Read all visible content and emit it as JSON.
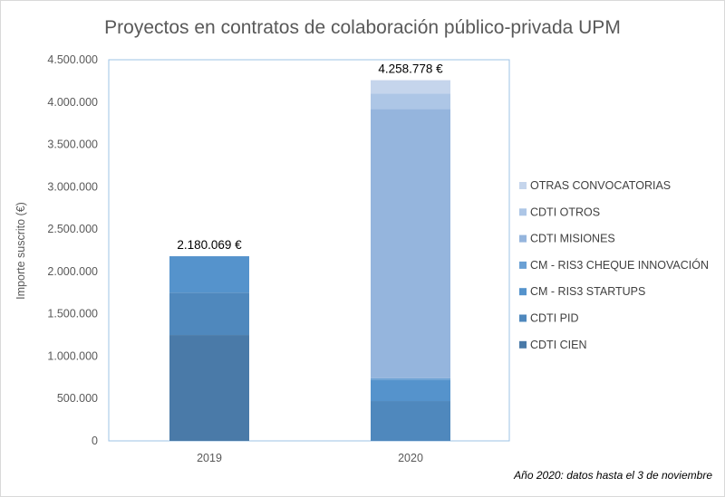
{
  "chart_data": {
    "type": "bar",
    "stacked": true,
    "title": "Proyectos en contratos de colaboración público-privada UPM",
    "ylabel": "Importe suscrito (€)",
    "xlabel": "",
    "ylim": [
      0,
      4500000
    ],
    "yticks": [
      0,
      500000,
      1000000,
      1500000,
      2000000,
      2500000,
      3000000,
      3500000,
      4000000,
      4500000
    ],
    "ytick_labels": [
      "0",
      "500.000",
      "1.000.000",
      "1.500.000",
      "2.000.000",
      "2.500.000",
      "3.000.000",
      "3.500.000",
      "4.000.000",
      "4.500.000"
    ],
    "categories": [
      "2019",
      "2020"
    ],
    "grid": false,
    "legend_position": "right",
    "series": [
      {
        "name": "CDTI CIEN",
        "color": "#4a7aa8",
        "values": [
          1250000,
          0
        ]
      },
      {
        "name": "CDTI PID",
        "color": "#4f88bd",
        "values": [
          500000,
          470000
        ]
      },
      {
        "name": "CM - RIS3 STARTUPS",
        "color": "#5593cc",
        "values": [
          430069,
          250000
        ]
      },
      {
        "name": "CM - RIS3 CHEQUE INNOVACIÓN",
        "color": "#6aa0d4",
        "values": [
          0,
          20000
        ]
      },
      {
        "name": "CDTI MISIONES",
        "color": "#95b5dd",
        "values": [
          0,
          3180000
        ]
      },
      {
        "name": "CDTI OTROS",
        "color": "#adc6e6",
        "values": [
          0,
          180000
        ]
      },
      {
        "name": "OTRAS CONVOCATORIAS",
        "color": "#c5d5ec",
        "values": [
          0,
          158778
        ]
      }
    ],
    "total_labels": [
      "2.180.069 €",
      "4.258.778 €"
    ],
    "annotation": "Año 2020: datos hasta el 3 de noviembre"
  }
}
